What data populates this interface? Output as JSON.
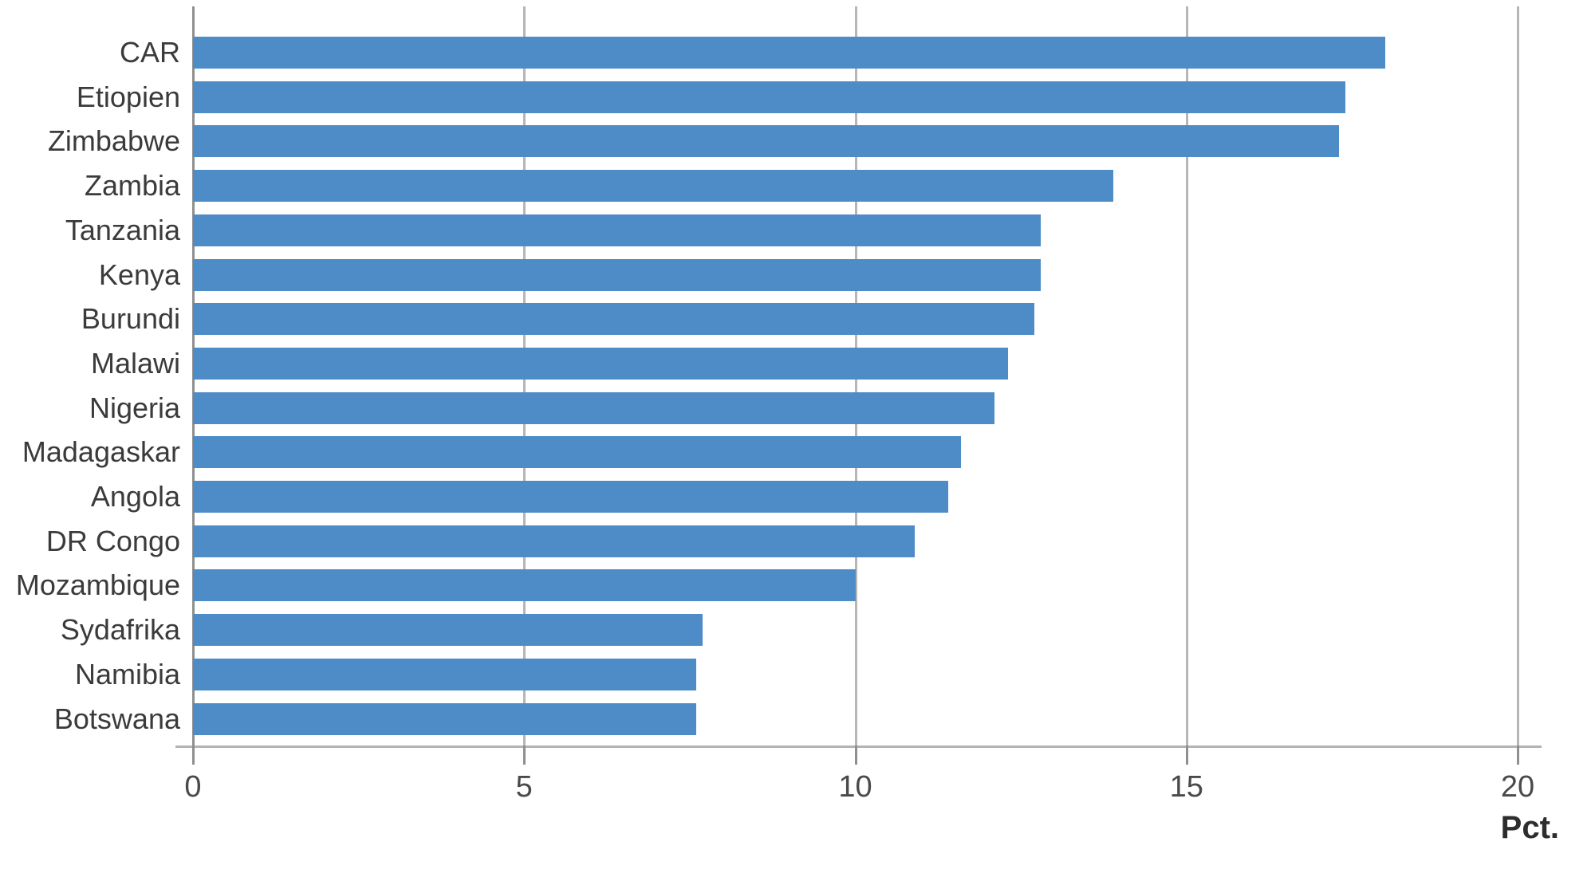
{
  "chart_data": {
    "type": "bar",
    "orientation": "horizontal",
    "title": "",
    "xlabel": "Pct.",
    "ylabel": "",
    "xlim": [
      0,
      20
    ],
    "x_ticks": [
      0,
      5,
      10,
      15,
      20
    ],
    "grid": true,
    "legend": false,
    "categories": [
      "CAR",
      "Etiopien",
      "Zimbabwe",
      "Zambia",
      "Tanzania",
      "Kenya",
      "Burundi",
      "Malawi",
      "Nigeria",
      "Madagaskar",
      "Angola",
      "DR Congo",
      "Mozambique",
      "Sydafrika",
      "Namibia",
      "Botswana"
    ],
    "values": [
      18.0,
      17.4,
      17.3,
      13.9,
      12.8,
      12.8,
      12.7,
      12.3,
      12.1,
      11.6,
      11.4,
      10.9,
      10.0,
      7.7,
      7.6,
      7.6
    ]
  },
  "colors": {
    "bar": "#4e8cc7",
    "gridline": "#b6b6b6",
    "axis": "#8f8f8f",
    "label_text": "#3b3b3b"
  }
}
